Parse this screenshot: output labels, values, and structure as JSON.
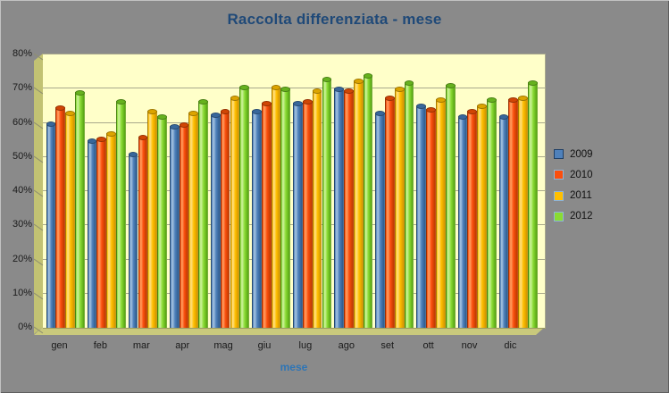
{
  "canvas": {
    "background": "#8A8A8A",
    "frame_light": "#C2C2C2",
    "frame_dark": "#5E5E5E"
  },
  "chart_data": {
    "type": "bar",
    "title": "Raccolta differenziata - mese",
    "title_color": "#1F4978",
    "xlabel": "mese",
    "xlabel_color": "#2E75B6",
    "ylabel": "",
    "categories": [
      "gen",
      "feb",
      "mar",
      "apr",
      "mag",
      "giu",
      "lug",
      "ago",
      "set",
      "ott",
      "nov",
      "dic"
    ],
    "series": [
      {
        "name": "2009",
        "color": "#4F81BB",
        "highlight": "#A9C6E2",
        "shadow": "#2E5B8C",
        "cap": "#38679B",
        "marker_border": "#1F3F66",
        "values": [
          60,
          55,
          51,
          59,
          62.5,
          63.5,
          66,
          70,
          63,
          65,
          62,
          62
        ]
      },
      {
        "name": "2010",
        "color": "#FB4F0E",
        "highlight": "#FFA264",
        "shadow": "#BE3A00",
        "cap": "#D04505",
        "marker_border": "#8EB4D8",
        "values": [
          64.5,
          55.5,
          56,
          59.5,
          63.5,
          66,
          66.5,
          69.5,
          67.5,
          64,
          63.5,
          67
        ]
      },
      {
        "name": "2011",
        "color": "#FFBF00",
        "highlight": "#FFE189",
        "shadow": "#D29500",
        "cap": "#DCA400",
        "marker_border": "#8EB4D8",
        "values": [
          63,
          57,
          63.5,
          63,
          67.5,
          70.5,
          69.5,
          72.5,
          70,
          67,
          65,
          67.5
        ]
      },
      {
        "name": "2012",
        "color": "#8ADB33",
        "highlight": "#CFF3A0",
        "shadow": "#56A313",
        "cap": "#66B21E",
        "marker_border": "#8EB4D8",
        "values": [
          69,
          66.5,
          62,
          66.5,
          70.5,
          70,
          73,
          74,
          72,
          71,
          67,
          72
        ]
      }
    ],
    "ylim": [
      0,
      80
    ],
    "ytick_step": 10,
    "ytick_suffix": "%",
    "grid": true,
    "legend_position": "right",
    "tick_label_color": "#1A1A1A",
    "plot_bg": "#FFFFC9",
    "side_wall_color": "#C2C273",
    "floor_color": "#C9C97C",
    "grid_color": "#A9A98C",
    "tick_mark_color": "#8F8F70"
  }
}
